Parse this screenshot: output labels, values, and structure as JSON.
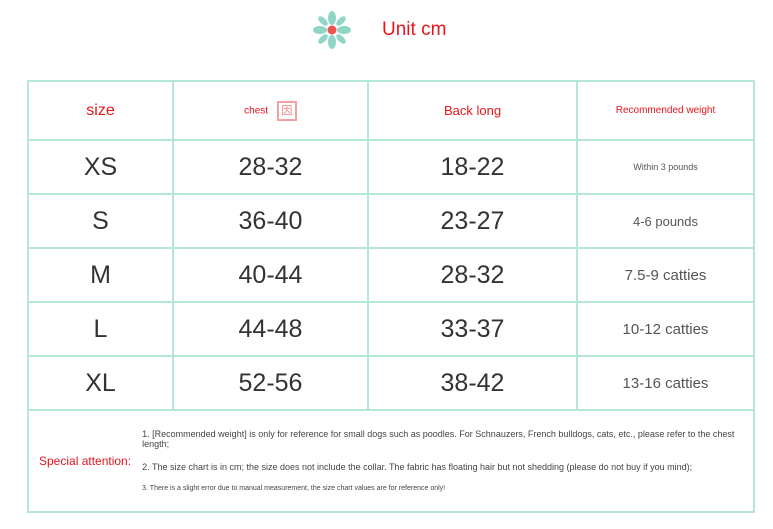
{
  "header": {
    "icon": "flower-icon",
    "title": "Unit cm"
  },
  "columns": [
    "size",
    "chest",
    "Back long",
    "Recommended weight"
  ],
  "rows": [
    {
      "size": "XS",
      "chest": "28-32",
      "back": "18-22",
      "weight": "Within 3 pounds"
    },
    {
      "size": "S",
      "chest": "36-40",
      "back": "23-27",
      "weight": "4-6 pounds"
    },
    {
      "size": "M",
      "chest": "40-44",
      "back": "28-32",
      "weight": "7.5-9 catties"
    },
    {
      "size": "L",
      "chest": "44-48",
      "back": "33-37",
      "weight": "10-12 catties"
    },
    {
      "size": "XL",
      "chest": "52-56",
      "back": "38-42",
      "weight": "13-16 catties"
    }
  ],
  "notes": {
    "label": "Special attention:",
    "items": [
      "1. [Recommended weight] is only for reference for small dogs such as poodles. For Schnauzers, French bulldogs, cats, etc., please refer to the chest length;",
      "2. The size chart is in cm; the size does not include the collar. The fabric has floating hair but not shedding (please do not buy if you mind);",
      "3. There is a slight error due to manual measurement, the size chart values are for reference only!"
    ]
  }
}
